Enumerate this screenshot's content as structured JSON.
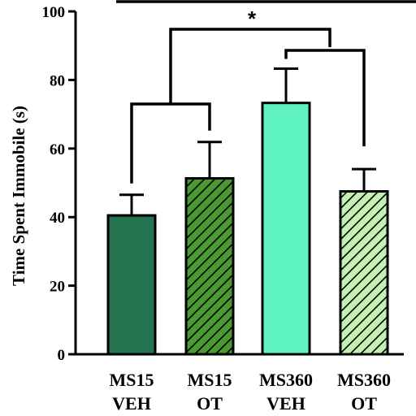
{
  "chart_data": {
    "type": "bar",
    "ylabel": "Time Spent Immobile (s)",
    "ylim": [
      0,
      100
    ],
    "yticks": [
      0,
      20,
      40,
      60,
      80,
      100
    ],
    "categories": [
      {
        "line1": "MS15",
        "line2": "VEH"
      },
      {
        "line1": "MS15",
        "line2": "OT"
      },
      {
        "line1": "MS360",
        "line2": "VEH"
      },
      {
        "line1": "MS360",
        "line2": "OT"
      }
    ],
    "values": [
      40.5,
      51.3,
      73.3,
      47.5
    ],
    "errors": [
      6.0,
      10.6,
      10.0,
      6.5
    ],
    "bar_styles": [
      {
        "fill": "#247250",
        "hatch": false
      },
      {
        "fill": "#4a9a32",
        "hatch": true
      },
      {
        "fill": "#5ef2c2",
        "hatch": false
      },
      {
        "fill": "#c6f0b2",
        "hatch": true
      }
    ],
    "significance": {
      "label": "*"
    }
  }
}
